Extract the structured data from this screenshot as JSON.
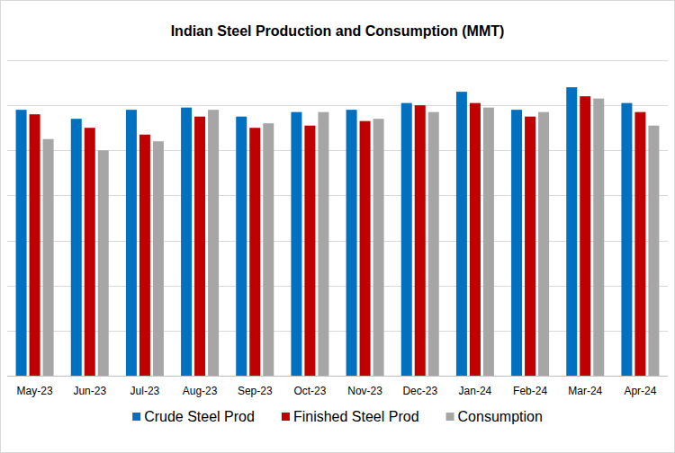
{
  "chart_data": {
    "type": "bar",
    "title": "Indian Steel Production and Consumption (MMT)",
    "categories": [
      "May-23",
      "Jun-23",
      "Jul-23",
      "Aug-23",
      "Sep-23",
      "Oct-23",
      "Nov-23",
      "Dec-23",
      "Jan-24",
      "Feb-24",
      "Mar-24",
      "Apr-24"
    ],
    "series": [
      {
        "name": "Crude Steel Prod",
        "color": "#0070c0",
        "values": [
          11.8,
          11.4,
          11.8,
          11.9,
          11.5,
          11.7,
          11.8,
          12.1,
          12.6,
          11.8,
          12.8,
          12.1
        ]
      },
      {
        "name": "Finished Steel Prod",
        "color": "#c00000",
        "values": [
          11.6,
          11.0,
          10.7,
          11.5,
          11.0,
          11.1,
          11.3,
          12.0,
          12.1,
          11.5,
          12.4,
          11.7
        ]
      },
      {
        "name": "Consumption",
        "color": "#a6a6a6",
        "values": [
          10.5,
          10.0,
          10.4,
          11.8,
          11.2,
          11.7,
          11.4,
          11.7,
          11.9,
          11.7,
          12.3,
          11.1
        ]
      }
    ],
    "ylim": [
      0,
      14
    ],
    "yticks": [
      0,
      2,
      4,
      6,
      8,
      10,
      12,
      14
    ],
    "grid": true,
    "legend": "bottom",
    "tick_labels": "x"
  }
}
